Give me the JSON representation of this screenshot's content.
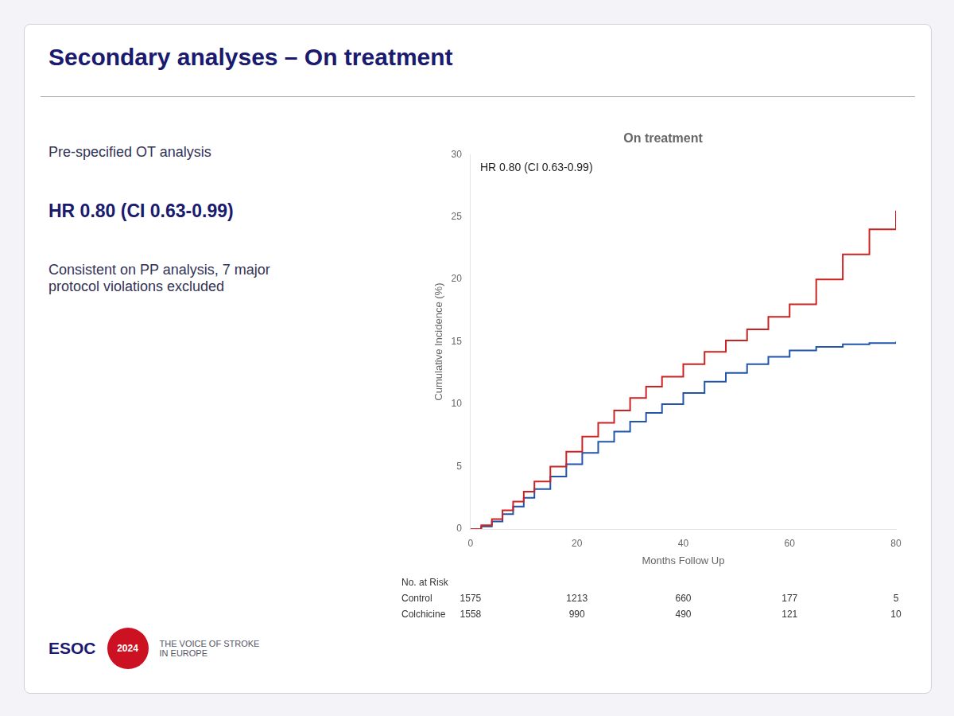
{
  "title": "Secondary analyses – On treatment",
  "annotations": [
    "Pre-specified OT analysis",
    "HR 0.80 (CI 0.63-0.99)",
    "Consistent on PP analysis, 7 major\nprotocol violations excluded",
    "ESOC",
    "2024",
    "THE VOICE OF STROKE\nIN EUROPE"
  ],
  "chart_data": {
    "type": "line",
    "title": "On treatment",
    "xlabel": "Months Follow Up",
    "ylabel": "Cumulative Incidence (%)",
    "xlim": [
      0,
      80
    ],
    "ylim": [
      0,
      30
    ],
    "xticks": [
      0,
      20,
      40,
      60,
      80
    ],
    "yticks": [
      0,
      5,
      10,
      15,
      20,
      25,
      30
    ],
    "grid": false,
    "line_style": "step",
    "annotations": [
      "HR 0.80 (CI 0.63-0.99)"
    ],
    "at_risk_title": "No. at Risk",
    "at_risk_x": [
      0,
      20,
      40,
      60,
      80
    ],
    "series": [
      {
        "name": "Control",
        "color": "#cc2222",
        "x": [
          0,
          2,
          4,
          6,
          8,
          10,
          12,
          15,
          18,
          21,
          24,
          27,
          30,
          33,
          36,
          40,
          44,
          48,
          52,
          56,
          60,
          65,
          70,
          75,
          80
        ],
        "values": [
          0,
          0.3,
          0.8,
          1.5,
          2.2,
          3.0,
          3.8,
          5.0,
          6.2,
          7.4,
          8.5,
          9.5,
          10.5,
          11.4,
          12.2,
          13.2,
          14.2,
          15.1,
          16.0,
          17.0,
          18.0,
          20.0,
          22.0,
          24.0,
          25.5
        ],
        "at_risk": [
          1575,
          1213,
          660,
          177,
          5
        ]
      },
      {
        "name": "Colchicine",
        "color": "#2255aa",
        "x": [
          0,
          2,
          4,
          6,
          8,
          10,
          12,
          15,
          18,
          21,
          24,
          27,
          30,
          33,
          36,
          40,
          44,
          48,
          52,
          56,
          60,
          65,
          70,
          75,
          80
        ],
        "values": [
          0,
          0.2,
          0.6,
          1.2,
          1.8,
          2.5,
          3.2,
          4.2,
          5.2,
          6.1,
          7.0,
          7.8,
          8.6,
          9.3,
          10.0,
          10.9,
          11.8,
          12.5,
          13.2,
          13.8,
          14.3,
          14.6,
          14.8,
          14.9,
          15.0
        ],
        "at_risk": [
          1558,
          990,
          490,
          121,
          10
        ]
      }
    ]
  }
}
